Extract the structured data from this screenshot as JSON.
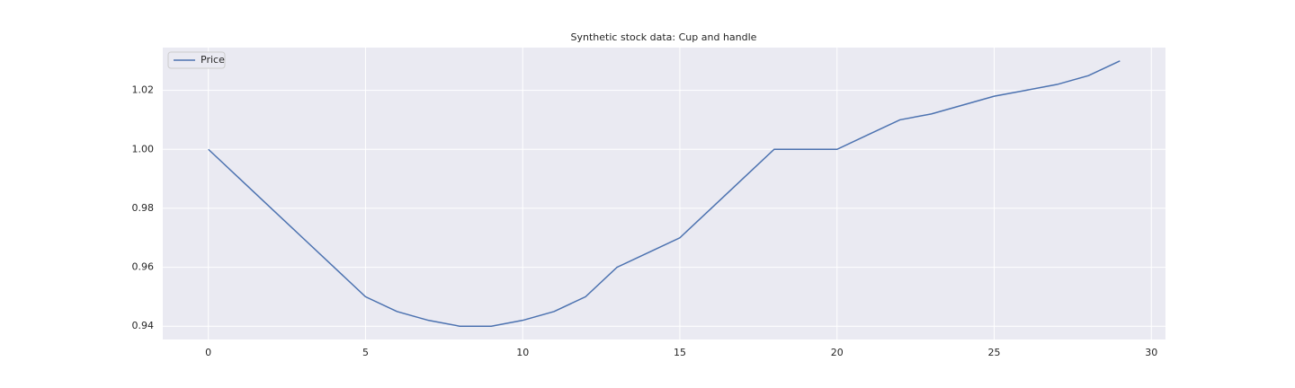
{
  "chart_data": {
    "type": "line",
    "title": "Synthetic stock data: Cup and handle",
    "x": [
      0,
      1,
      2,
      3,
      4,
      5,
      6,
      7,
      8,
      9,
      10,
      11,
      12,
      13,
      14,
      15,
      16,
      17,
      18,
      19,
      20,
      21,
      22,
      23,
      24,
      25,
      26,
      27,
      28,
      29
    ],
    "series": [
      {
        "name": "Price",
        "color": "#4c72b0",
        "values": [
          1.0,
          0.99,
          0.98,
          0.97,
          0.96,
          0.95,
          0.945,
          0.942,
          0.94,
          0.94,
          0.942,
          0.945,
          0.95,
          0.96,
          0.965,
          0.97,
          0.98,
          0.99,
          1.0,
          1.0,
          1.0,
          1.005,
          1.01,
          1.012,
          1.015,
          1.018,
          1.02,
          1.022,
          1.025,
          1.03
        ]
      }
    ],
    "xlim": [
      -1.45,
      30.45
    ],
    "xticks": [
      0,
      5,
      10,
      15,
      20,
      25,
      30
    ],
    "ylim": [
      0.9355,
      1.0345
    ],
    "yticks": [
      {
        "value": 0.94,
        "label": "0.94"
      },
      {
        "value": 0.96,
        "label": "0.96"
      },
      {
        "value": 0.98,
        "label": "0.98"
      },
      {
        "value": 1.0,
        "label": "1.00"
      },
      {
        "value": 1.02,
        "label": "1.02"
      }
    ],
    "grid": true,
    "legend": "upper left"
  }
}
